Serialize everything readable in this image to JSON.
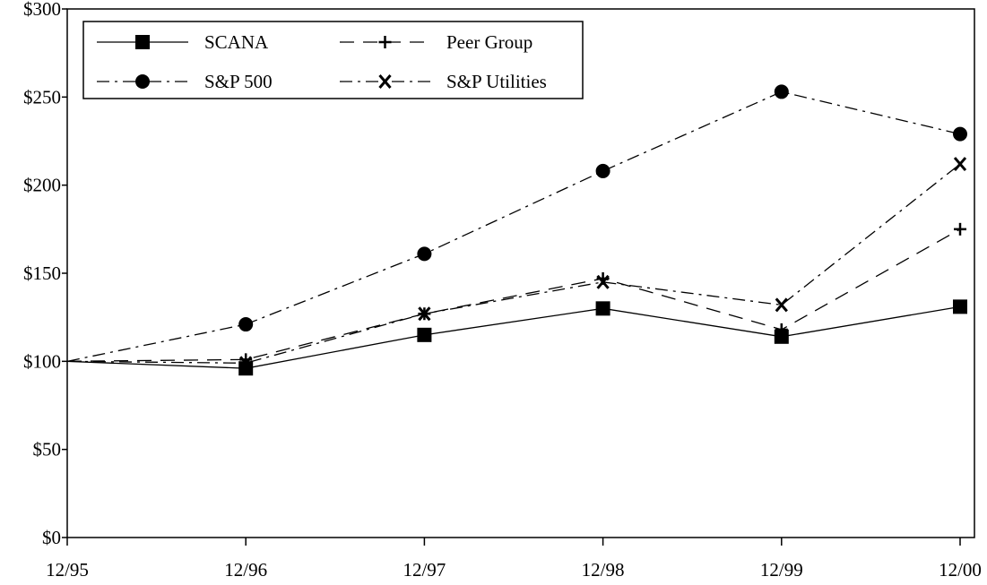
{
  "chart_data": {
    "type": "line",
    "title": "",
    "xlabel": "",
    "ylabel": "",
    "categories": [
      "12/95",
      "12/96",
      "12/97",
      "12/98",
      "12/99",
      "12/00"
    ],
    "ylim": [
      0,
      300
    ],
    "yticks": [
      0,
      50,
      100,
      150,
      200,
      250,
      300
    ],
    "ytick_labels": [
      "$0",
      "$50",
      "$100",
      "$150",
      "$200",
      "$250",
      "$300"
    ],
    "grid": false,
    "legend_position": "top-left",
    "series": [
      {
        "name": "SCANA",
        "values": [
          100,
          96,
          115,
          130,
          114,
          131
        ],
        "marker": "square",
        "dash": "solid"
      },
      {
        "name": "Peer Group",
        "values": [
          100,
          101,
          127,
          147,
          118,
          175
        ],
        "marker": "plus",
        "dash": "dashed"
      },
      {
        "name": "S&P 500",
        "values": [
          100,
          121,
          161,
          208,
          253,
          229
        ],
        "marker": "circle",
        "dash": "dashdot"
      },
      {
        "name": "S&P Utilities",
        "values": [
          100,
          99,
          127,
          145,
          132,
          212
        ],
        "marker": "x",
        "dash": "dashdot"
      }
    ],
    "colors": {
      "line": "#000000",
      "background": "#ffffff"
    }
  }
}
